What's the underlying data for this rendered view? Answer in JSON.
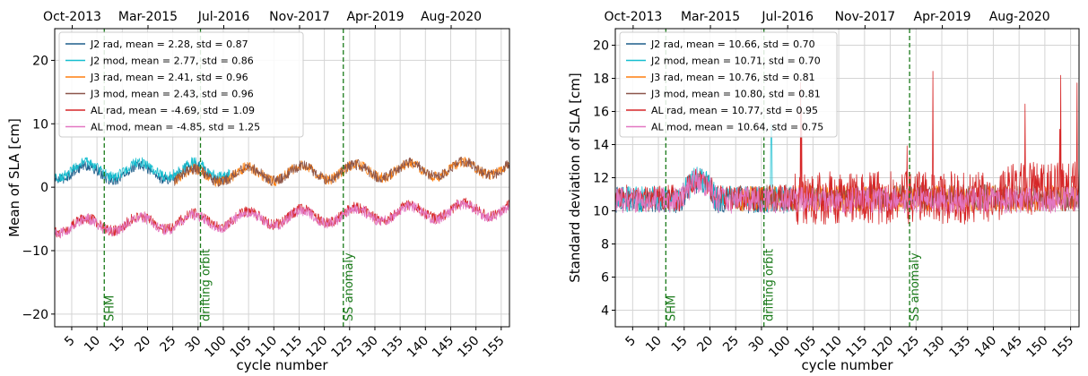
{
  "chart_data": [
    {
      "type": "line",
      "ylabel": "Mean of SLA [cm]",
      "xlabel": "cycle number",
      "xlim": [
        0,
        156
      ],
      "ylim": [
        -22,
        25
      ],
      "yticks": [
        -20,
        -10,
        0,
        10,
        20
      ],
      "xticks": [
        5,
        10,
        15,
        20,
        25,
        30,
        100,
        105,
        110,
        115,
        120,
        125,
        130,
        135,
        140,
        145,
        150,
        155
      ],
      "top_axis_labels": [
        "Oct-2013",
        "Mar-2015",
        "Jul-2016",
        "Nov-2017",
        "Apr-2019",
        "Aug-2020"
      ],
      "grid": true,
      "legend_position": "upper-left",
      "events": [
        {
          "label": "SHM",
          "x": 17
        },
        {
          "label": "drifting orbit",
          "x": 50
        },
        {
          "label": "SS anomaly",
          "x": 99
        }
      ],
      "series": [
        {
          "name": "J2 rad, mean = 2.28, std = 0.87",
          "color": "#1f5f8b",
          "x_range": [
            0,
            60
          ],
          "mean": 2.28,
          "std": 0.87
        },
        {
          "name": "J2 mod, mean = 2.77, std = 0.86",
          "color": "#17becf",
          "x_range": [
            0,
            60
          ],
          "mean": 2.77,
          "std": 0.86
        },
        {
          "name": "J3 rad, mean = 2.41, std = 0.96",
          "color": "#ff7f0e",
          "x_range": [
            41,
            156
          ],
          "mean": 2.41,
          "std": 0.96
        },
        {
          "name": "J3 mod, mean = 2.43, std = 0.96",
          "color": "#8c564b",
          "x_range": [
            41,
            156
          ],
          "mean": 2.43,
          "std": 0.96
        },
        {
          "name": "AL rad, mean = -4.69, std = 1.09",
          "color": "#d62728",
          "x_range": [
            0,
            156
          ],
          "mean": -4.69,
          "std": 1.09
        },
        {
          "name": "AL mod, mean = -4.85, std = 1.25",
          "color": "#e377c2",
          "x_range": [
            0,
            156
          ],
          "mean": -4.85,
          "std": 1.25
        }
      ]
    },
    {
      "type": "line",
      "ylabel": "Standard deviation of SLA [cm]",
      "xlabel": "cycle number",
      "xlim": [
        0,
        156
      ],
      "ylim": [
        3,
        21
      ],
      "yticks": [
        4,
        6,
        8,
        10,
        12,
        14,
        16,
        18,
        20
      ],
      "xticks": [
        5,
        10,
        15,
        20,
        25,
        30,
        100,
        105,
        110,
        115,
        120,
        125,
        130,
        135,
        140,
        145,
        150,
        155
      ],
      "top_axis_labels": [
        "Oct-2013",
        "Mar-2015",
        "Jul-2016",
        "Nov-2017",
        "Apr-2019",
        "Aug-2020"
      ],
      "grid": true,
      "legend_position": "upper-left",
      "events": [
        {
          "label": "SHM",
          "x": 17
        },
        {
          "label": "drifting orbit",
          "x": 50
        },
        {
          "label": "SS anomaly",
          "x": 99
        }
      ],
      "series": [
        {
          "name": "J2 rad, mean = 10.66, std = 0.70",
          "color": "#1f5f8b",
          "x_range": [
            0,
            60
          ],
          "mean": 10.66,
          "std": 0.7
        },
        {
          "name": "J2 mod, mean = 10.71, std = 0.70",
          "color": "#17becf",
          "x_range": [
            0,
            60
          ],
          "mean": 10.71,
          "std": 0.7
        },
        {
          "name": "J3 rad, mean = 10.76, std = 0.81",
          "color": "#ff7f0e",
          "x_range": [
            41,
            156
          ],
          "mean": 10.76,
          "std": 0.81
        },
        {
          "name": "J3 mod, mean = 10.80, std = 0.81",
          "color": "#8c564b",
          "x_range": [
            41,
            156
          ],
          "mean": 10.8,
          "std": 0.81
        },
        {
          "name": "AL rad, mean = 10.77, std = 0.95",
          "color": "#d62728",
          "x_range": [
            0,
            156
          ],
          "mean": 10.77,
          "std": 0.95
        },
        {
          "name": "AL mod, mean = 10.64, std = 0.75",
          "color": "#e377c2",
          "x_range": [
            0,
            156
          ],
          "mean": 10.64,
          "std": 0.75
        }
      ]
    }
  ]
}
